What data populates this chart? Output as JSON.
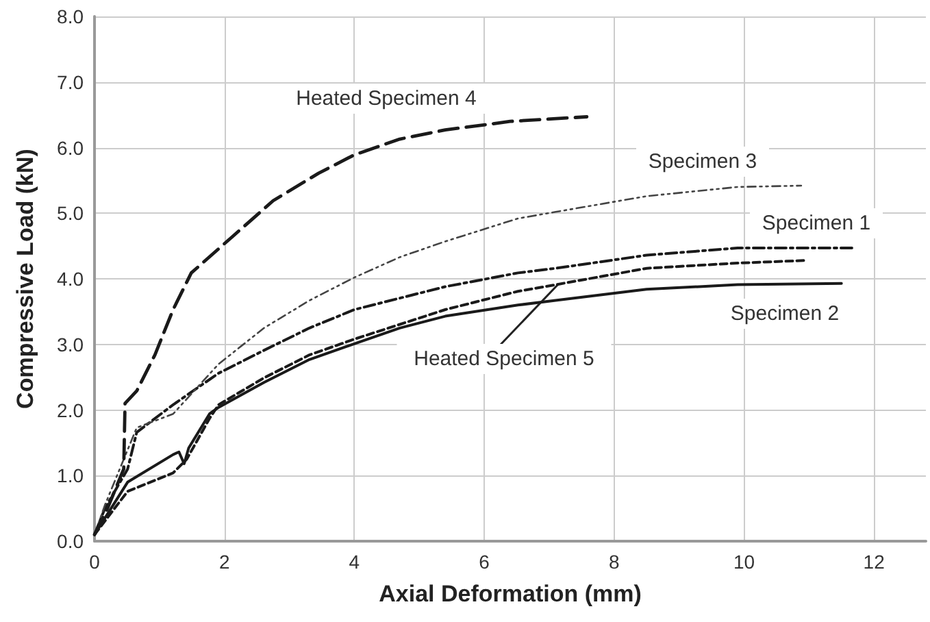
{
  "chart_data": {
    "type": "line",
    "xlabel": "Axial Deformation (mm)",
    "ylabel": "Compressive Load (kN)",
    "xlim": [
      0,
      12.8
    ],
    "xticks": [
      0,
      2,
      4,
      6,
      8,
      10,
      12
    ],
    "ylim": [
      0,
      8
    ],
    "yticks": [
      {
        "value": 0,
        "label": "0.0"
      },
      {
        "value": 1,
        "label": "1.0"
      },
      {
        "value": 2,
        "label": "2.0"
      },
      {
        "value": 3,
        "label": "3.0"
      },
      {
        "value": 4,
        "label": "4.0"
      },
      {
        "value": 5,
        "label": "5.0"
      },
      {
        "value": 6,
        "label": "6.0"
      },
      {
        "value": 7,
        "label": "7.0"
      },
      {
        "value": 8,
        "label": "8.0"
      }
    ],
    "grid": true,
    "legend": false,
    "marker": "none",
    "series": [
      {
        "name": "Specimen 1",
        "color": "#1a1a1a",
        "line_style": "dashed",
        "x": [
          0,
          0.16,
          0.51,
          0.65,
          1.21,
          1.91,
          2.61,
          3.31,
          4.0,
          5.4,
          6.52,
          7.1,
          8.5,
          9.9,
          11.7
        ],
        "values": [
          0.1,
          0.5,
          1.1,
          1.66,
          2.08,
          2.56,
          2.91,
          3.25,
          3.53,
          3.88,
          4.09,
          4.16,
          4.36,
          4.47,
          4.47
        ]
      },
      {
        "name": "Specimen 2",
        "color": "#1a1a1a",
        "line_style": "solid",
        "x": [
          0,
          0.51,
          1.21,
          1.3,
          1.38,
          1.45,
          1.77,
          1.91,
          2.61,
          3.31,
          4.0,
          4.7,
          5.4,
          6.52,
          7.1,
          8.5,
          9.9,
          11.5
        ],
        "values": [
          0.1,
          0.9,
          1.32,
          1.36,
          1.18,
          1.42,
          1.94,
          2.04,
          2.42,
          2.77,
          3.01,
          3.25,
          3.43,
          3.6,
          3.67,
          3.84,
          3.91,
          3.93
        ]
      },
      {
        "name": "Specimen 3",
        "color": "#444444",
        "line_style": "dotted",
        "x": [
          0,
          0.16,
          0.65,
          1.21,
          1.91,
          2.61,
          3.31,
          4.0,
          4.7,
          5.4,
          6.52,
          7.1,
          8.5,
          9.9,
          10.88
        ],
        "values": [
          0.1,
          0.55,
          1.73,
          1.94,
          2.7,
          3.25,
          3.67,
          4.02,
          4.33,
          4.57,
          4.92,
          5.02,
          5.26,
          5.4,
          5.42
        ]
      },
      {
        "name": "Heated Specimen 4",
        "color": "#1a1a1a",
        "line_style": "dashed",
        "x": [
          0,
          0.2,
          0.45,
          0.47,
          0.65,
          0.93,
          1.21,
          1.49,
          2.12,
          2.75,
          3.45,
          4.0,
          4.7,
          5.4,
          6.1,
          6.4,
          7.58
        ],
        "values": [
          0.1,
          0.5,
          1.1,
          2.1,
          2.29,
          2.84,
          3.53,
          4.09,
          4.64,
          5.19,
          5.61,
          5.89,
          6.13,
          6.27,
          6.36,
          6.4,
          6.47
        ]
      },
      {
        "name": "Heated Specimen 5",
        "color": "#1a1a1a",
        "line_style": "dashed",
        "x": [
          0,
          0.51,
          1.21,
          1.42,
          1.77,
          1.91,
          2.61,
          3.31,
          4.0,
          5.4,
          6.52,
          7.1,
          8.5,
          9.9,
          10.95
        ],
        "values": [
          0.1,
          0.76,
          1.04,
          1.25,
          1.87,
          2.08,
          2.49,
          2.84,
          3.08,
          3.53,
          3.81,
          3.91,
          4.16,
          4.24,
          4.28
        ]
      }
    ]
  }
}
